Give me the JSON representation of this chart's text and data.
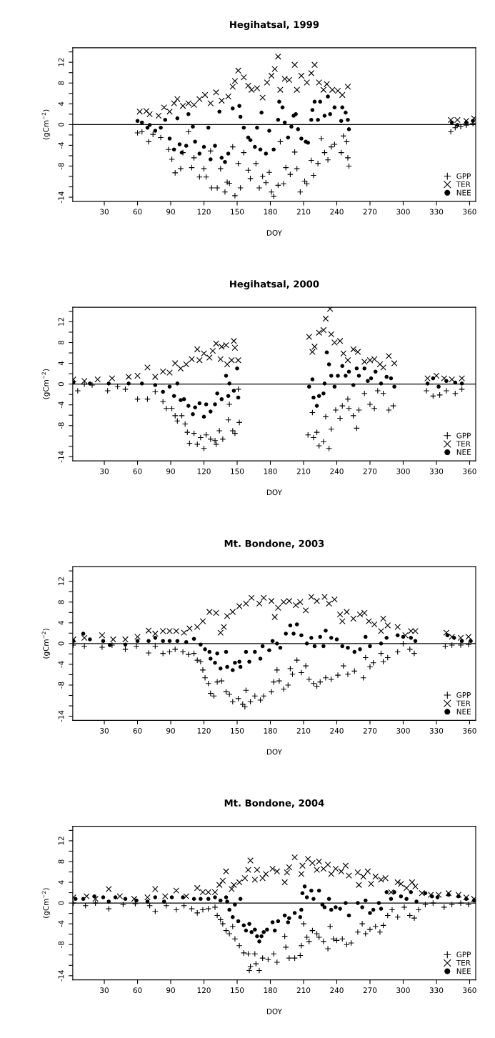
{
  "chart_data": [
    {
      "type": "scatter",
      "title": "Hegihatsal, 1999",
      "xlabel": "DOY",
      "ylabel": "(gCm$^{−2}$)",
      "xlim": [
        1.5,
        365.5
      ],
      "ylim": [
        -14.8,
        14.8
      ],
      "xticks": [
        30,
        60,
        90,
        120,
        150,
        180,
        210,
        240,
        270,
        300,
        330,
        360
      ],
      "yticks": [
        {
          "value": 14,
          "label": null
        },
        12,
        {
          "value": 10,
          "label": null
        },
        8,
        {
          "value": 6,
          "label": null
        },
        4,
        {
          "value": 2,
          "label": null
        },
        0,
        {
          "value": -2,
          "label": null
        },
        -4,
        {
          "value": -6,
          "label": null
        },
        -8,
        {
          "value": -10,
          "label": null
        },
        {
          "value": -12,
          "label": null
        },
        -14
      ],
      "grid": false,
      "legend": "bottom right",
      "ref_lines": [
        {
          "axis": "y",
          "value": 0,
          "color": "#000000"
        }
      ],
      "series": [
        {
          "name": "GPP",
          "color": "#000000",
          "marker": "plus",
          "x": [
            60,
            64,
            70,
            74,
            81,
            88,
            91,
            94,
            99,
            101,
            106,
            109,
            111,
            116,
            120,
            122,
            126,
            127,
            132,
            135,
            139,
            141,
            143,
            146,
            148,
            151,
            153,
            156,
            160,
            162,
            167,
            170,
            173,
            176,
            179,
            181,
            183,
            187,
            189,
            192,
            194,
            198,
            202,
            204,
            207,
            211,
            213,
            217,
            219,
            223,
            226,
            229,
            232,
            235,
            238,
            244,
            246,
            249,
            250,
            251,
            343,
            347,
            352,
            357,
            363
          ],
          "values": [
            -1.6,
            -1.4,
            -3.3,
            -1.9,
            -2.5,
            -4.8,
            -6.7,
            -9.3,
            -8.5,
            -5.4,
            -1.4,
            -8.3,
            -6.4,
            -10.1,
            -8.5,
            -10.1,
            -5.1,
            -12.2,
            -12.2,
            -8.5,
            -13,
            -11.1,
            -11.3,
            -4.3,
            -13.7,
            -7.5,
            -12.2,
            -5.4,
            -8.8,
            -10.4,
            -7.5,
            -12.2,
            -10,
            -11.2,
            -9.2,
            -13,
            -13.8,
            -11.7,
            -3.3,
            -11.4,
            -8.3,
            -9.6,
            -5.3,
            -8.5,
            -13,
            -10.9,
            -11.4,
            -6.9,
            -9.8,
            -7.5,
            -2.7,
            -5.4,
            -6.8,
            -4.3,
            -3.8,
            -5.4,
            -2.2,
            -3.3,
            -6.4,
            -8,
            -1.4,
            -0.6,
            -0.4,
            -0.1,
            0.2
          ]
        },
        {
          "name": "TER",
          "color": "#000000",
          "marker": "cross",
          "x": [
            62,
            68,
            71,
            79,
            84,
            89,
            93,
            96,
            101,
            106,
            111,
            116,
            121,
            126,
            131,
            136,
            142,
            146,
            148,
            151,
            156,
            160,
            163,
            168,
            173,
            177,
            181,
            184,
            187,
            189,
            193,
            197,
            202,
            204,
            208,
            213,
            217,
            220,
            224,
            228,
            231,
            236,
            241,
            245,
            250,
            343,
            349,
            357,
            364
          ],
          "values": [
            2.5,
            2.6,
            2,
            1.7,
            3.3,
            2.5,
            4.1,
            4.9,
            3.6,
            4.1,
            3.8,
            4.9,
            5.7,
            4.1,
            6.2,
            4.6,
            5.4,
            7.3,
            8.4,
            10.4,
            9.1,
            7.5,
            6.7,
            7,
            5.2,
            8.1,
            9.4,
            10.7,
            13.1,
            6.7,
            8.8,
            8.6,
            11.5,
            6.7,
            9.4,
            8.1,
            9.9,
            11.5,
            8.1,
            6.7,
            7.8,
            6.7,
            6.5,
            5.7,
            7.3,
            0.9,
            0.9,
            0.7,
            1.2
          ]
        },
        {
          "name": "NEE",
          "color": "#000000",
          "marker": "circle",
          "x": [
            60,
            64,
            69,
            71,
            76,
            81,
            85,
            89,
            93,
            96,
            98,
            100,
            104,
            106,
            110,
            112,
            116,
            120,
            124,
            126,
            130,
            134,
            136,
            139,
            142,
            146,
            152,
            153,
            156,
            160,
            162,
            166,
            168,
            171,
            172,
            176,
            179,
            183,
            187,
            188,
            191,
            193,
            196,
            199,
            201,
            203,
            205,
            208,
            212,
            214,
            217,
            218,
            220,
            223,
            225,
            229,
            232,
            234,
            238,
            244,
            245,
            248,
            250,
            251,
            344,
            349,
            357,
            363
          ],
          "values": [
            0.7,
            0.4,
            -0.6,
            -0.1,
            -1.2,
            -0.6,
            0.9,
            -2.7,
            -4.8,
            1.2,
            -3.8,
            -5.4,
            -4.1,
            2,
            -0.4,
            -3.3,
            -5.6,
            -4.3,
            -0.6,
            -6.7,
            -4.1,
            2.5,
            -6.4,
            -7.2,
            -5.6,
            3.1,
            3.6,
            1.5,
            -0.6,
            -2.5,
            -3,
            -4.3,
            -0.6,
            -4.8,
            2.3,
            -5.6,
            -1.2,
            -4.8,
            0.9,
            4.4,
            3.3,
            0.4,
            -2.5,
            -0.4,
            1.7,
            2,
            -0.9,
            -2.7,
            -3.3,
            -3.5,
            0.9,
            2.8,
            4.4,
            0.9,
            4.4,
            1.7,
            5.4,
            2,
            3.3,
            0.7,
            3.3,
            2.3,
            0.9,
            -0.9,
            0.4,
            -0.1,
            0.4,
            0.7
          ]
        }
      ]
    },
    {
      "type": "scatter",
      "title": "Hegihatsal, 2000",
      "xlabel": "DOY",
      "ylabel": "(gCm$^{−2}$)",
      "xlim": [
        1.5,
        365.5
      ],
      "ylim": [
        -14.8,
        14.8
      ],
      "xticks": [
        30,
        60,
        90,
        120,
        150,
        180,
        210,
        240,
        270,
        300,
        330,
        360
      ],
      "yticks": [
        {
          "value": 14,
          "label": null
        },
        12,
        {
          "value": 10,
          "label": null
        },
        8,
        {
          "value": 6,
          "label": null
        },
        4,
        {
          "value": 2,
          "label": null
        },
        0,
        {
          "value": -2,
          "label": null
        },
        -4,
        {
          "value": -6,
          "label": null
        },
        -8,
        {
          "value": -10,
          "label": null
        },
        {
          "value": -12,
          "label": null
        },
        -14
      ],
      "grid": false,
      "legend": "bottom right",
      "ref_lines": [
        {
          "axis": "y",
          "value": 0,
          "color": "#000000"
        }
      ],
      "series": [
        {
          "name": "GPP",
          "color": "#000000",
          "marker": "plus",
          "x": [
            6,
            12,
            19,
            33,
            42,
            49,
            60,
            69,
            76,
            83,
            86,
            91,
            94,
            96,
            100,
            103,
            105,
            107,
            111,
            114,
            117,
            120,
            122,
            126,
            130,
            131,
            134,
            137,
            142,
            143,
            146,
            148,
            151,
            152,
            214,
            218,
            219,
            222,
            224,
            228,
            230,
            233,
            235,
            239,
            243,
            245,
            250,
            251,
            255,
            258,
            260,
            265,
            270,
            274,
            277,
            282,
            287,
            291,
            321,
            327,
            333,
            339,
            347,
            353
          ],
          "values": [
            -1.3,
            0,
            -0.2,
            -1.3,
            -0.5,
            -1,
            -2.9,
            -2.9,
            -1.5,
            -3.4,
            -4.7,
            -4.7,
            -6.1,
            -7.1,
            -6.1,
            -7.7,
            -9.3,
            -11.4,
            -9.5,
            -11.6,
            -10.3,
            -12.4,
            -9.8,
            -10.6,
            -10.9,
            -11.6,
            -9,
            -10.6,
            -6.9,
            -3.9,
            -9,
            -9.5,
            -1,
            -7.4,
            -9.8,
            -5.5,
            -10.3,
            -9.3,
            -11.9,
            -11.1,
            -6.3,
            -12.4,
            -8.7,
            -5,
            -6.6,
            -4.2,
            -2.9,
            -4.7,
            -6.1,
            -8.5,
            -5,
            -1.8,
            -3.9,
            -4.7,
            -1.3,
            -1.8,
            -5,
            -4.2,
            -1.3,
            -2.3,
            -2.1,
            -1.3,
            -1.8,
            -1
          ]
        },
        {
          "name": "TER",
          "color": "#000000",
          "marker": "cross",
          "x": [
            2,
            12,
            24,
            37,
            52,
            60,
            69,
            76,
            83,
            89,
            94,
            99,
            104,
            109,
            114,
            116,
            120,
            125,
            128,
            131,
            135,
            136,
            140,
            141,
            145,
            147,
            148,
            151,
            215,
            218,
            220,
            224,
            228,
            230,
            234,
            235,
            238,
            243,
            246,
            250,
            255,
            259,
            265,
            270,
            274,
            279,
            282,
            287,
            292,
            322,
            330,
            337,
            344,
            353
          ],
          "values": [
            0.9,
            0.6,
            0.9,
            1.1,
            1.4,
            1.6,
            3.2,
            1.4,
            2.4,
            2.2,
            4,
            3,
            3.8,
            4.8,
            6.7,
            4.6,
            5.9,
            5.1,
            6.4,
            7.8,
            4.8,
            7.2,
            7.5,
            3.8,
            4.6,
            8.3,
            7,
            4.6,
            9.1,
            6.2,
            7.2,
            9.9,
            10.4,
            12.6,
            14.5,
            9.6,
            8,
            8.3,
            5.9,
            4.6,
            6.7,
            6.2,
            4.3,
            4.6,
            4.8,
            3.8,
            3.2,
            5.4,
            4,
            1.1,
            1.6,
            1.1,
            0.9,
            1.1
          ]
        },
        {
          "name": "NEE",
          "color": "#000000",
          "marker": "circle",
          "x": [
            2,
            17,
            34,
            52,
            64,
            76,
            83,
            89,
            93,
            96,
            99,
            102,
            106,
            110,
            112,
            116,
            120,
            122,
            126,
            130,
            132,
            136,
            140,
            142,
            143,
            147,
            150,
            151,
            215,
            218,
            219,
            222,
            224,
            228,
            229,
            231,
            233,
            235,
            238,
            241,
            245,
            248,
            251,
            255,
            258,
            260,
            265,
            268,
            271,
            275,
            280,
            285,
            289,
            292,
            322,
            327,
            332,
            339,
            347,
            353
          ],
          "values": [
            0.3,
            0.1,
            0.1,
            0.1,
            0.1,
            -0.2,
            -1.5,
            -0.5,
            -2.3,
            0.1,
            -3.1,
            -2.9,
            -4.2,
            -5.8,
            -4.5,
            -3.7,
            -6.3,
            -3.9,
            -5.3,
            -3.9,
            -1.8,
            -2.9,
            1.6,
            -2.3,
            0.1,
            -1.3,
            3,
            -2.6,
            -0.5,
            0.9,
            -2.6,
            -4.2,
            -2.3,
            -1.8,
            0.1,
            6.1,
            3.8,
            1.6,
            -0.5,
            1.6,
            3.5,
            1.6,
            2.4,
            -0.2,
            3,
            1.6,
            3,
            0.6,
            1.1,
            2.4,
            0.1,
            1.4,
            1.1,
            -0.5,
            0.1,
            1.1,
            -0.5,
            0.6,
            0.3,
            0.1
          ]
        }
      ]
    },
    {
      "type": "scatter",
      "title": "Mt. Bondone, 2003",
      "xlabel": "DOY",
      "ylabel": "(gCm$^{−2}$)",
      "xlim": [
        1.5,
        365.5
      ],
      "ylim": [
        -14.8,
        14.8
      ],
      "xticks": [
        30,
        60,
        90,
        120,
        150,
        180,
        210,
        240,
        270,
        300,
        330,
        360
      ],
      "yticks": [
        {
          "value": 14,
          "label": null
        },
        12,
        {
          "value": 10,
          "label": null
        },
        8,
        {
          "value": 6,
          "label": null
        },
        4,
        {
          "value": 2,
          "label": null
        },
        0,
        {
          "value": -2,
          "label": null
        },
        -4,
        {
          "value": -6,
          "label": null
        },
        -8,
        {
          "value": -10,
          "label": null
        },
        {
          "value": -12,
          "label": null
        },
        -14
      ],
      "grid": false,
      "legend": "bottom right",
      "ref_lines": [
        {
          "axis": "y",
          "value": 0,
          "color": "#000000"
        }
      ],
      "series": [
        {
          "name": "GPP",
          "color": "#000000",
          "marker": "plus",
          "x": [
            2,
            12,
            28,
            37,
            49,
            59,
            70,
            76,
            83,
            89,
            94,
            101,
            106,
            111,
            114,
            117,
            119,
            121,
            124,
            126,
            129,
            132,
            136,
            140,
            143,
            146,
            151,
            155,
            157,
            158,
            162,
            166,
            171,
            174,
            181,
            183,
            186,
            188,
            192,
            196,
            198,
            200,
            204,
            208,
            212,
            215,
            219,
            222,
            225,
            230,
            235,
            241,
            246,
            250,
            256,
            264,
            266,
            270,
            273,
            280,
            282,
            286,
            295,
            300,
            306,
            310,
            338,
            344,
            352,
            359
          ],
          "values": [
            -0.3,
            -0.5,
            -0.7,
            -0.3,
            -1.1,
            -0.5,
            -1.8,
            -0.5,
            -1.9,
            -1.6,
            -1.1,
            -1.6,
            -2.1,
            -1.9,
            -3.2,
            -3.5,
            -5.1,
            -6.6,
            -7.7,
            -9.6,
            -10.1,
            -7.4,
            -7.2,
            -9.3,
            -9.8,
            -11.2,
            -10.6,
            -11.7,
            -12.2,
            -9,
            -11.2,
            -10.1,
            -10.9,
            -10.1,
            -9.3,
            -7.4,
            -5.1,
            -7.2,
            -8.8,
            -8,
            -4.8,
            -5.9,
            -3.2,
            -5.6,
            -4.3,
            -6.9,
            -7.7,
            -8.2,
            -7.4,
            -6.6,
            -6.9,
            -6.1,
            -4.3,
            -5.9,
            -5.3,
            -6.6,
            -2.7,
            -4.5,
            -3.7,
            -1.9,
            -3.5,
            -2.7,
            -1.6,
            0,
            -1.1,
            -1.9,
            -0.5,
            -0.3,
            -0.3,
            -0.2
          ]
        },
        {
          "name": "TER",
          "color": "#000000",
          "marker": "cross",
          "x": [
            2,
            12,
            28,
            38,
            49,
            60,
            70,
            76,
            83,
            89,
            95,
            102,
            107,
            114,
            119,
            125,
            131,
            135,
            138,
            141,
            146,
            152,
            158,
            163,
            170,
            174,
            181,
            184,
            187,
            192,
            197,
            203,
            207,
            212,
            217,
            222,
            229,
            233,
            238,
            243,
            245,
            249,
            255,
            261,
            265,
            269,
            274,
            280,
            282,
            286,
            295,
            302,
            307,
            311,
            339,
            344,
            352,
            359
          ],
          "values": [
            0.8,
            1.1,
            1.6,
            0.8,
            0.8,
            1.3,
            2.5,
            1.9,
            2.4,
            2.4,
            2.4,
            2.1,
            2.9,
            3.2,
            4.3,
            6.1,
            5.9,
            2.1,
            3.2,
            5.3,
            6.1,
            7.2,
            7.7,
            8.8,
            7.7,
            8.8,
            8.2,
            5.1,
            6.9,
            8,
            8.2,
            7.4,
            8,
            6.4,
            9,
            8.2,
            9,
            7.7,
            8.5,
            5.6,
            4.3,
            6.1,
            4.8,
            5.6,
            5.9,
            4.3,
            3.7,
            2.4,
            4.8,
            3.5,
            3.2,
            1.6,
            2.4,
            2.4,
            2.1,
            1.3,
            1.1,
            1.3
          ]
        },
        {
          "name": "NEE",
          "color": "#000000",
          "marker": "circle",
          "x": [
            2,
            11,
            17,
            29,
            35,
            49,
            60,
            70,
            76,
            83,
            89,
            96,
            104,
            111,
            117,
            121,
            125,
            126,
            130,
            132,
            135,
            140,
            141,
            146,
            148,
            152,
            153,
            158,
            161,
            166,
            171,
            173,
            179,
            182,
            186,
            189,
            194,
            198,
            201,
            204,
            208,
            213,
            217,
            220,
            225,
            228,
            230,
            235,
            240,
            245,
            250,
            256,
            261,
            266,
            270,
            280,
            285,
            295,
            300,
            307,
            311,
            340,
            346,
            353,
            361
          ],
          "values": [
            0.5,
            1.9,
            0.8,
            0.5,
            -0.3,
            -0.2,
            0.5,
            0.5,
            1.1,
            0.5,
            0.5,
            0.5,
            0.3,
            0.9,
            -0.2,
            -1.1,
            -1.6,
            -2.9,
            -3.7,
            -1.9,
            -4.8,
            -1.6,
            -4.5,
            -5.1,
            -3.7,
            -3.5,
            -4.5,
            -1.6,
            -3.5,
            -1.6,
            -2.9,
            -0.5,
            -1.3,
            0.5,
            0,
            -0.8,
            1.9,
            3.5,
            1.9,
            3.7,
            1.6,
            0,
            1.1,
            -0.5,
            1.3,
            -0.5,
            2.5,
            1.1,
            0.8,
            -0.5,
            -0.8,
            -1.6,
            -1.1,
            1.3,
            -0.5,
            0,
            1.1,
            1.6,
            1.3,
            1.1,
            0.5,
            1.6,
            1.1,
            0.5,
            0.5
          ]
        }
      ]
    },
    {
      "type": "scatter",
      "title": "Mt. Bondone, 2004",
      "xlabel": "DOY",
      "ylabel": "(gCm$^{−2}$)",
      "xlim": [
        1.5,
        365.5
      ],
      "ylim": [
        -14.8,
        14.8
      ],
      "xticks": [
        30,
        60,
        90,
        120,
        150,
        180,
        210,
        240,
        270,
        300,
        330,
        360
      ],
      "yticks": [
        {
          "value": 14,
          "label": null
        },
        12,
        {
          "value": 10,
          "label": null
        },
        8,
        {
          "value": 6,
          "label": null
        },
        4,
        {
          "value": 2,
          "label": null
        },
        0,
        {
          "value": -2,
          "label": null
        },
        -4,
        {
          "value": -6,
          "label": null
        },
        -8,
        {
          "value": -10,
          "label": null
        },
        {
          "value": -12,
          "label": null
        },
        -14
      ],
      "grid": false,
      "legend": "bottom right",
      "ref_lines": [
        {
          "axis": "y",
          "value": 0,
          "color": "#000000"
        }
      ],
      "series": [
        {
          "name": "GPP",
          "color": "#000000",
          "marker": "plus",
          "x": [
            2,
            13,
            22,
            34,
            47,
            58,
            71,
            76,
            86,
            95,
            102,
            109,
            114,
            119,
            124,
            130,
            132,
            135,
            137,
            140,
            143,
            146,
            148,
            152,
            156,
            160,
            161,
            162,
            166,
            167,
            170,
            173,
            178,
            183,
            186,
            193,
            194,
            197,
            202,
            207,
            208,
            210,
            213,
            215,
            218,
            222,
            224,
            228,
            232,
            234,
            237,
            240,
            245,
            249,
            253,
            259,
            263,
            266,
            270,
            275,
            279,
            282,
            286,
            290,
            295,
            301,
            306,
            310,
            314,
            320,
            327,
            337,
            344,
            352,
            359
          ],
          "values": [
            0,
            -0.5,
            0,
            -1.1,
            -0.3,
            -0.1,
            -0.5,
            -1.6,
            -0.5,
            -1.3,
            -0.5,
            -1.1,
            -1.9,
            -1.3,
            -1.1,
            -0.8,
            -2.4,
            -3.2,
            -4,
            -5.3,
            -5.9,
            -4.5,
            -6.9,
            -8.2,
            -9.6,
            -9.8,
            -13,
            -12.2,
            -9.8,
            -11.7,
            -13,
            -10.6,
            -10.9,
            -9.8,
            -11.4,
            -6.4,
            -8.5,
            -10.6,
            -10.6,
            -10.1,
            -8.2,
            -4,
            -6.6,
            -7.4,
            -5.3,
            -5.9,
            -6.6,
            -7.4,
            -8.8,
            -4.5,
            -6.9,
            -7.2,
            -6.9,
            -8,
            -7.7,
            -5.6,
            -4,
            -5.9,
            -5.1,
            -4.5,
            -5.6,
            -4.3,
            -2.4,
            -1.3,
            -2.7,
            -0.8,
            -2.4,
            -2.9,
            -1.3,
            -0.3,
            0,
            -0.8,
            -0.3,
            0,
            -0.3
          ]
        },
        {
          "name": "TER",
          "color": "#000000",
          "marker": "cross",
          "x": [
            2,
            14,
            22,
            34,
            44,
            57,
            69,
            76,
            85,
            95,
            104,
            114,
            119,
            124,
            130,
            134,
            137,
            140,
            145,
            147,
            152,
            157,
            160,
            162,
            166,
            168,
            173,
            176,
            182,
            186,
            193,
            195,
            197,
            202,
            208,
            209,
            214,
            218,
            222,
            224,
            228,
            232,
            235,
            239,
            244,
            248,
            251,
            259,
            260,
            264,
            268,
            271,
            275,
            280,
            284,
            289,
            295,
            298,
            303,
            308,
            311,
            317,
            325,
            332,
            341,
            350,
            357,
            364
          ],
          "values": [
            1.1,
            1.3,
            0.8,
            2.7,
            1.3,
            0.8,
            1.1,
            2.7,
            1.3,
            2.4,
            1.3,
            2.9,
            2.1,
            2.1,
            2.1,
            3.5,
            4.3,
            6.1,
            2.7,
            3.5,
            4,
            4.8,
            6.4,
            8.2,
            4.5,
            6.4,
            4.8,
            5.6,
            6.6,
            6.1,
            4,
            5.9,
            6.9,
            8.8,
            5.6,
            7.2,
            8.5,
            7.7,
            6.4,
            8,
            6.6,
            7.4,
            5.6,
            6.6,
            6.1,
            7.2,
            5.3,
            5.9,
            3.5,
            5.1,
            6.1,
            3.7,
            5.1,
            4.5,
            4.8,
            2.1,
            4,
            3.7,
            2.9,
            4,
            3.2,
            1.9,
            1.6,
            1.6,
            1.9,
            1.6,
            1.1,
            0.8
          ]
        },
        {
          "name": "NEE",
          "color": "#000000",
          "marker": "circle",
          "x": [
            4,
            11,
            21,
            29,
            34,
            40,
            49,
            59,
            69,
            76,
            84,
            91,
            101,
            111,
            117,
            124,
            130,
            135,
            140,
            141,
            143,
            146,
            148,
            151,
            153,
            156,
            158,
            161,
            163,
            166,
            168,
            170,
            172,
            174,
            177,
            182,
            184,
            187,
            193,
            196,
            197,
            202,
            207,
            208,
            209,
            211,
            213,
            217,
            219,
            224,
            227,
            229,
            233,
            235,
            239,
            243,
            248,
            251,
            259,
            263,
            266,
            270,
            273,
            278,
            280,
            285,
            289,
            292,
            298,
            303,
            307,
            312,
            320,
            326,
            331,
            341,
            350,
            357,
            364
          ],
          "values": [
            0.8,
            0.8,
            1.3,
            1.1,
            0.3,
            1.1,
            0.8,
            0.5,
            0.3,
            1.1,
            0.3,
            1.1,
            1.1,
            0.8,
            0.8,
            0.8,
            1.1,
            0.5,
            1.1,
            0.3,
            -1.3,
            -2.7,
            -0.3,
            -3.5,
            0.8,
            -4.3,
            -5.3,
            -4,
            -5.6,
            -5.1,
            -6.4,
            -7.4,
            -6.4,
            -5.6,
            -5.1,
            -3.7,
            -5.3,
            -3.5,
            -2.4,
            -3.7,
            -2.9,
            -1.9,
            -2.7,
            -1.3,
            1.9,
            3.2,
            1.1,
            2.4,
            0.8,
            2.4,
            -0.3,
            -0.8,
            0.8,
            -1.3,
            -0.8,
            -1.1,
            0,
            -2.4,
            0,
            -0.8,
            0.5,
            -1.9,
            -1.3,
            0,
            -1.1,
            2.1,
            0.8,
            2.1,
            1.3,
            0.8,
            2.1,
            0.3,
            1.9,
            1.3,
            1.1,
            1.6,
            1.3,
            0.8,
            0.5
          ]
        }
      ]
    }
  ]
}
